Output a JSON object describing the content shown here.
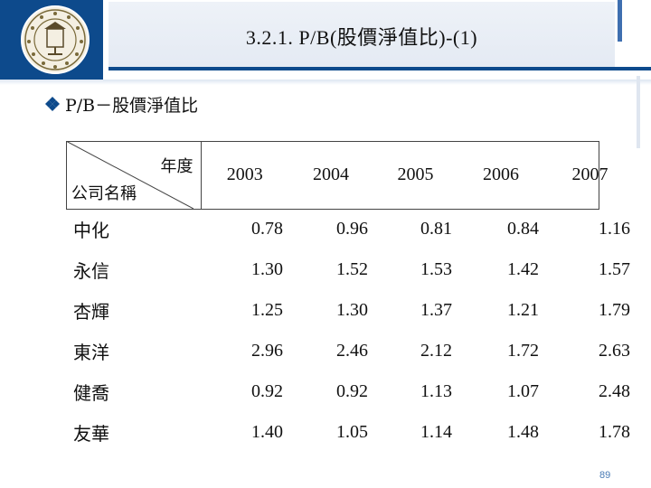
{
  "header": {
    "title": "3.2.1. P/B(股價淨值比)-(1)"
  },
  "bullet": {
    "icon": "diamond-bullet-icon",
    "text": "P/B－股價淨值比"
  },
  "table": {
    "corner_top": "年度",
    "corner_bottom": "公司名稱",
    "years": [
      "2003",
      "2004",
      "2005",
      "2006",
      "2007"
    ],
    "rows": [
      {
        "name": "中化",
        "values": [
          "0.78",
          "0.96",
          "0.81",
          "0.84",
          "1.16"
        ]
      },
      {
        "name": "永信",
        "values": [
          "1.30",
          "1.52",
          "1.53",
          "1.42",
          "1.57"
        ]
      },
      {
        "name": "杏輝",
        "values": [
          "1.25",
          "1.30",
          "1.37",
          "1.21",
          "1.79"
        ]
      },
      {
        "name": "東洋",
        "values": [
          "2.96",
          "2.46",
          "2.12",
          "1.72",
          "2.63"
        ]
      },
      {
        "name": "健喬",
        "values": [
          "0.92",
          "0.92",
          "1.13",
          "1.07",
          "2.48"
        ]
      },
      {
        "name": "友華",
        "values": [
          "1.40",
          "1.05",
          "1.14",
          "1.48",
          "1.78"
        ]
      }
    ]
  },
  "page_number": "89",
  "colors": {
    "brand_blue": "#0d4a8c",
    "title_bg": "#e9eef6",
    "page_number": "#4a7bb5"
  }
}
